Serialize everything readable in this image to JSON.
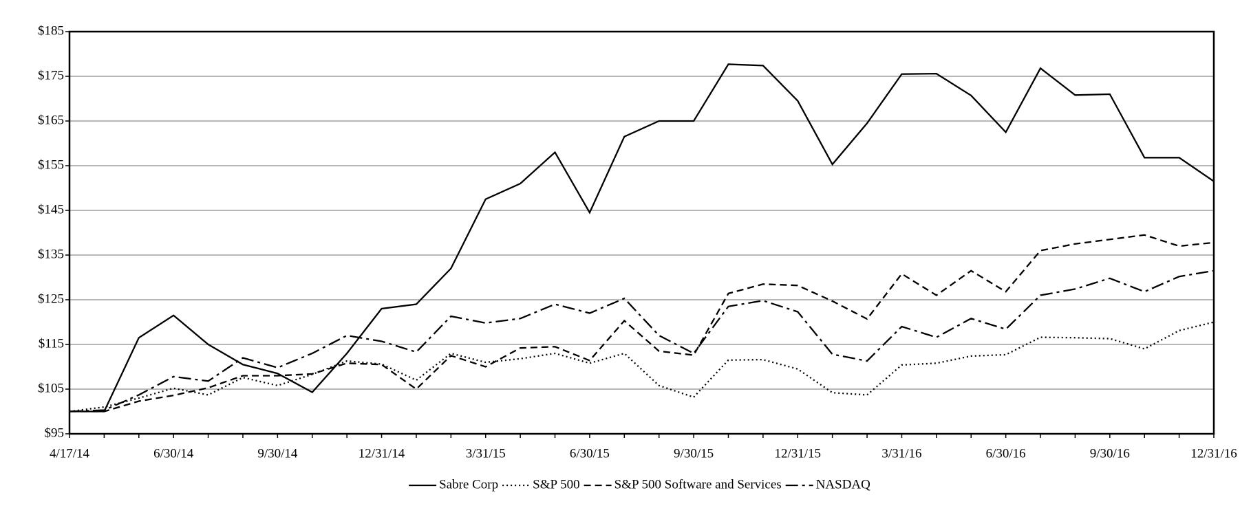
{
  "chart_data": {
    "type": "line",
    "categories": [
      "4/17/14",
      null,
      null,
      "6/30/14",
      null,
      null,
      "9/30/14",
      null,
      null,
      "12/31/14",
      null,
      null,
      "3/31/15",
      null,
      null,
      "6/30/15",
      null,
      null,
      "9/30/15",
      null,
      null,
      "12/31/15",
      null,
      null,
      "3/31/16",
      null,
      null,
      "6/30/16",
      null,
      null,
      "9/30/16",
      null,
      null,
      "12/31/16"
    ],
    "ylim": [
      95,
      185
    ],
    "yticks": [
      {
        "value": 95,
        "label": "$95"
      },
      {
        "value": 105,
        "label": "$105"
      },
      {
        "value": 115,
        "label": "$115"
      },
      {
        "value": 125,
        "label": "$125"
      },
      {
        "value": 135,
        "label": "$135"
      },
      {
        "value": 145,
        "label": "$145"
      },
      {
        "value": 155,
        "label": "$155"
      },
      {
        "value": 165,
        "label": "$165"
      },
      {
        "value": 175,
        "label": "$175"
      },
      {
        "value": 185,
        "label": "$185"
      }
    ],
    "grid": true,
    "legend": "bottom",
    "series": [
      {
        "name": "Sabre Corp",
        "color": "#000000",
        "dash": "solid",
        "values": [
          100,
          100,
          116.5,
          121.5,
          115,
          110.5,
          108.5,
          104.3,
          113,
          123,
          124,
          132,
          147.5,
          151,
          158,
          144.5,
          161.5,
          165,
          165,
          177.7,
          177.4,
          169.5,
          155.3,
          164.5,
          175.5,
          175.6,
          170.7,
          162.5,
          176.8,
          170.8,
          171,
          156.8,
          156.8,
          151.5
        ]
      },
      {
        "name": "S&P 500",
        "color": "#000000",
        "dash": "dotted",
        "values": [
          100,
          101,
          103,
          105.2,
          103.7,
          107.6,
          105.8,
          108.3,
          111.3,
          110.6,
          107,
          113,
          111,
          111.8,
          113,
          110.8,
          113,
          105.8,
          103.2,
          111.5,
          111.6,
          109.5,
          104.2,
          103.7,
          110.4,
          110.8,
          112.4,
          112.7,
          116.6,
          116.5,
          116.3,
          114,
          118.1,
          120
        ]
      },
      {
        "name": "S&P 500 Software and Services",
        "color": "#000000",
        "dash": "dashed",
        "values": [
          100,
          100,
          102.3,
          103.6,
          105.3,
          108,
          108,
          108.4,
          110.8,
          110.5,
          105,
          112.5,
          110,
          114.2,
          114.5,
          111.4,
          120.3,
          113.5,
          112.6,
          126.4,
          128.5,
          128.2,
          124.7,
          120.7,
          130.8,
          126,
          131.5,
          126.8,
          136,
          137.5,
          138.5,
          139.5,
          137,
          137.8
        ]
      },
      {
        "name": "NASDAQ",
        "color": "#000000",
        "dash": "dashdot",
        "values": [
          100,
          100.3,
          103.7,
          107.8,
          106.8,
          112,
          109.8,
          113,
          117,
          115.7,
          113.3,
          121.3,
          119.8,
          120.8,
          124,
          122,
          125.3,
          117,
          113,
          123.5,
          124.8,
          122.3,
          112.8,
          111.3,
          119,
          116.6,
          120.8,
          118.4,
          126,
          127.4,
          129.8,
          126.8,
          130.2,
          131.5
        ]
      }
    ]
  }
}
